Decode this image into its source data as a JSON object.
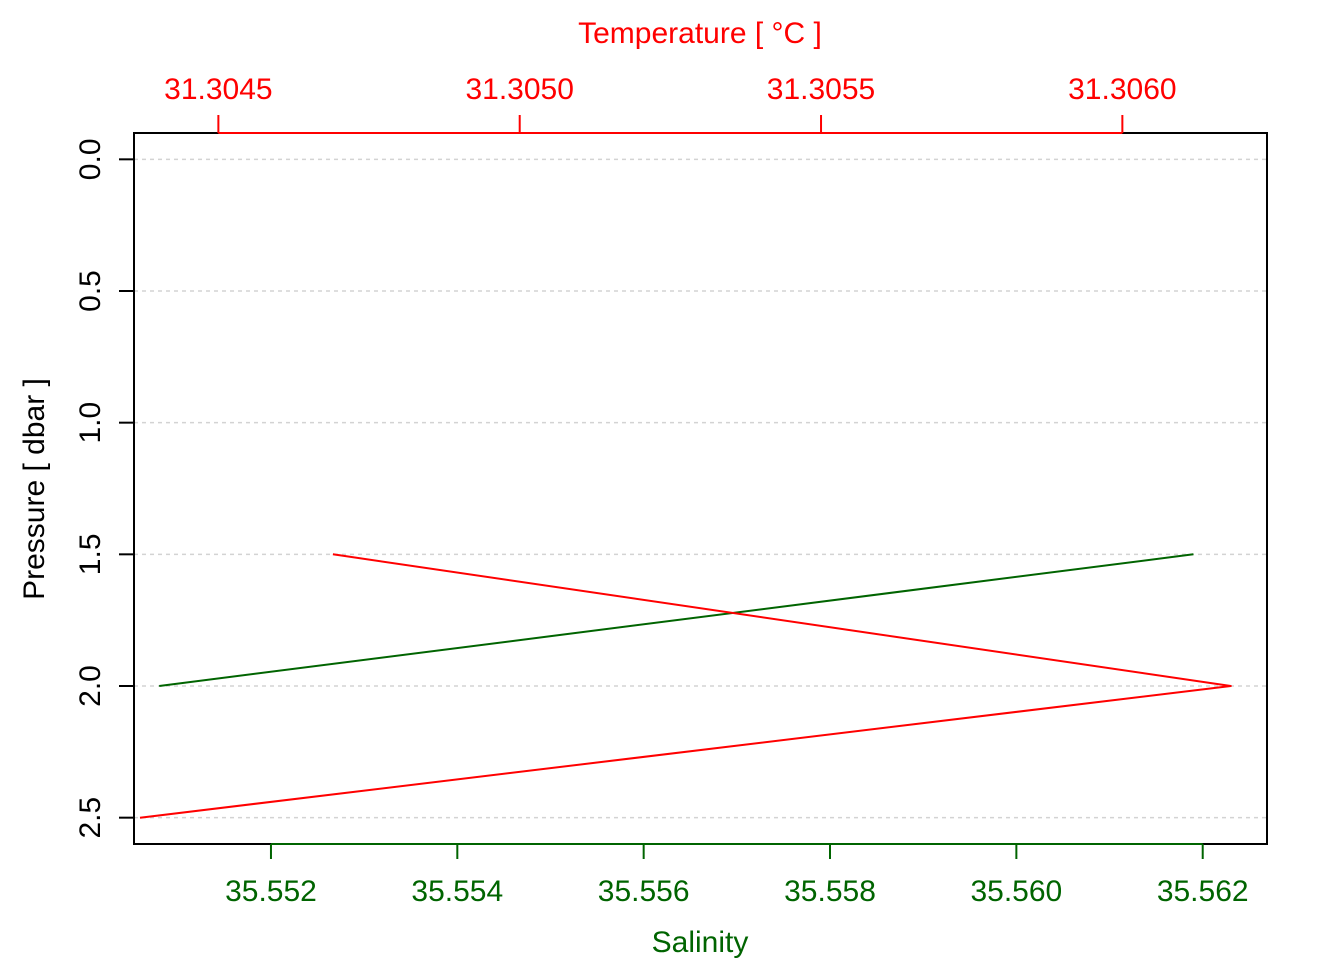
{
  "chart_data": {
    "type": "line",
    "y_axis": {
      "label": "Pressure [ dbar ]",
      "ticks": [
        0.0,
        0.5,
        1.0,
        1.5,
        2.0,
        2.5
      ],
      "tick_labels": [
        "0.0",
        "0.5",
        "1.0",
        "1.5",
        "2.0",
        "2.5"
      ],
      "range": [
        2.6,
        -0.1
      ],
      "reversed": true,
      "color": "#000000",
      "grid": true
    },
    "x_bottom_axis": {
      "label": "Salinity",
      "ticks": [
        35.552,
        35.554,
        35.556,
        35.558,
        35.56,
        35.562
      ],
      "tick_labels": [
        "35.552",
        "35.554",
        "35.556",
        "35.558",
        "35.560",
        "35.562"
      ],
      "range": [
        35.55053,
        35.56269
      ],
      "color": "#006400"
    },
    "x_top_axis": {
      "label": "Temperature [ °C ]",
      "ticks": [
        31.3045,
        31.305,
        31.3055,
        31.306
      ],
      "tick_labels": [
        "31.3045",
        "31.3050",
        "31.3055",
        "31.3060"
      ],
      "range": [
        31.30436,
        31.30624
      ],
      "color": "#ff0000"
    },
    "series": [
      {
        "axis": "bottom",
        "color": "#006400",
        "points": [
          {
            "x": 35.5508,
            "y": 2.0
          },
          {
            "x": 35.5619,
            "y": 1.5
          }
        ]
      },
      {
        "axis": "top",
        "color": "#ff0000",
        "points": [
          {
            "x": 31.30437,
            "y": 2.5
          },
          {
            "x": 31.30618,
            "y": 2.0
          },
          {
            "x": 31.30469,
            "y": 1.5
          }
        ]
      }
    ]
  }
}
